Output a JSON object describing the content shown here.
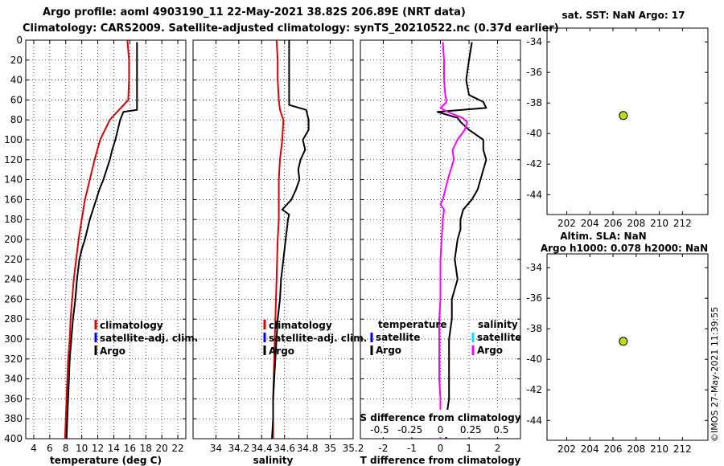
{
  "title": {
    "line1": "Argo profile: aoml 4903190_11 22-May-2021 38.82S 206.89E (NRT data)",
    "line2": "Climatology: CARS2009. Satellite-adjusted climatology: synTS_20210522.nc (0.37d earlier)"
  },
  "footer": "©IMOS 27-May-2021 11:39:55",
  "colors": {
    "climatology": "#e00000",
    "satellite": "#0000ff",
    "argo": "#000000",
    "salinity": "#ff00ff",
    "cyan": "#00e0ff",
    "dot": "#b8e000"
  },
  "chart_data": [
    {
      "type": "line",
      "name": "temperature-profile",
      "xlabel": "temperature (deg C)",
      "ylabel": "",
      "xlim": [
        3,
        23
      ],
      "ylim": [
        400,
        0
      ],
      "xticks": [
        "4",
        "6",
        "8",
        "10",
        "12",
        "14",
        "16",
        "18",
        "20",
        "22"
      ],
      "xtick_values": [
        4,
        6,
        8,
        10,
        12,
        14,
        16,
        18,
        20,
        22
      ],
      "yticks": [
        "0",
        "20",
        "40",
        "60",
        "80",
        "100",
        "120",
        "140",
        "160",
        "180",
        "200",
        "220",
        "240",
        "260",
        "280",
        "300",
        "320",
        "340",
        "360",
        "380",
        "400"
      ],
      "ytick_values": [
        0,
        20,
        40,
        60,
        80,
        100,
        120,
        140,
        160,
        180,
        200,
        220,
        240,
        260,
        280,
        300,
        320,
        340,
        360,
        380,
        400
      ],
      "legend": [
        "climatology",
        "satellite-adj. clim.",
        "Argo"
      ],
      "series": [
        {
          "name": "climatology",
          "depth": [
            0,
            20,
            40,
            60,
            80,
            100,
            120,
            140,
            160,
            180,
            200,
            220,
            240,
            260,
            280,
            300,
            320,
            340,
            360,
            380,
            400
          ],
          "values": [
            15.7,
            15.9,
            15.9,
            15.8,
            13.5,
            12.3,
            11.6,
            11.0,
            10.4,
            10.0,
            9.6,
            9.3,
            9.0,
            8.8,
            8.6,
            8.5,
            8.3,
            8.2,
            8.1,
            8.0,
            7.9
          ]
        },
        {
          "name": "Argo",
          "depth": [
            2,
            20,
            40,
            55,
            60,
            65,
            70,
            72,
            80,
            90,
            100,
            110,
            120,
            130,
            140,
            150,
            160,
            170,
            180,
            190,
            200,
            210,
            220,
            240,
            260,
            280,
            300,
            320,
            340,
            360,
            380,
            400
          ],
          "values": [
            16.9,
            16.9,
            16.9,
            16.9,
            16.9,
            16.9,
            16.9,
            15.2,
            14.8,
            14.5,
            14.2,
            13.8,
            13.5,
            13.1,
            12.7,
            12.2,
            11.8,
            11.4,
            11.0,
            10.7,
            10.4,
            10.0,
            9.7,
            9.4,
            9.2,
            8.9,
            8.7,
            8.5,
            8.4,
            8.3,
            8.2,
            8.1
          ]
        }
      ]
    },
    {
      "type": "line",
      "name": "salinity-profile",
      "xlabel": "salinity",
      "xlim": [
        33.8,
        35.2
      ],
      "ylim": [
        400,
        0
      ],
      "xticks": [
        "34",
        "34.2",
        "34.4",
        "34.6",
        "34.8",
        "35",
        "35.2"
      ],
      "xtick_values": [
        34,
        34.2,
        34.4,
        34.6,
        34.8,
        35,
        35.2
      ],
      "legend": [
        "climatology",
        "satellite-adj. clim.",
        "Argo"
      ],
      "series": [
        {
          "name": "climatology",
          "depth": [
            0,
            20,
            40,
            60,
            70,
            80,
            100,
            120,
            140,
            160,
            180,
            200,
            240,
            280,
            320,
            360,
            400
          ],
          "values": [
            34.53,
            34.54,
            34.54,
            34.55,
            34.56,
            34.59,
            34.58,
            34.56,
            34.55,
            34.55,
            34.55,
            34.54,
            34.53,
            34.52,
            34.51,
            34.5,
            34.5
          ]
        },
        {
          "name": "Argo",
          "depth": [
            0,
            20,
            40,
            60,
            65,
            70,
            80,
            90,
            100,
            110,
            120,
            130,
            140,
            150,
            160,
            170,
            175,
            180,
            190,
            200,
            220,
            240,
            260,
            280,
            300,
            320,
            340,
            360,
            380,
            400
          ],
          "values": [
            34.64,
            34.64,
            34.64,
            34.64,
            34.64,
            34.79,
            34.81,
            34.81,
            34.76,
            34.78,
            34.74,
            34.72,
            34.73,
            34.7,
            34.66,
            34.58,
            34.64,
            34.63,
            34.62,
            34.61,
            34.59,
            34.57,
            34.56,
            34.54,
            34.53,
            34.52,
            34.51,
            34.5,
            34.5,
            34.49
          ]
        }
      ]
    },
    {
      "type": "line",
      "name": "difference-from-climatology",
      "xlabel": "T difference from climatology",
      "xlabel_top": "S difference from climatology",
      "xlim": [
        -2.8,
        2.8
      ],
      "ylim": [
        400,
        0
      ],
      "xticks": [
        "-2",
        "-1",
        "0",
        "1",
        "2"
      ],
      "xtick_values": [
        -2,
        -1,
        0,
        1,
        2
      ],
      "xticks_top": [
        "-0.5",
        "-0.25",
        "0",
        "0.25",
        "0.5"
      ],
      "xtick_top_values": [
        -0.5,
        -0.25,
        0,
        0.25,
        0.5
      ],
      "legend_left": [
        "temperature",
        "satellite",
        "Argo"
      ],
      "legend_right": [
        "salinity",
        "satellite",
        "Argo"
      ],
      "series": [
        {
          "name": "T Argo",
          "depth": [
            2,
            20,
            40,
            55,
            62,
            68,
            72,
            78,
            82,
            90,
            100,
            110,
            120,
            130,
            140,
            150,
            160,
            170,
            180,
            190,
            200,
            220,
            240,
            260,
            280,
            300,
            320,
            340,
            360,
            380,
            400
          ],
          "values": [
            1.1,
            1.0,
            0.9,
            1.0,
            1.5,
            1.6,
            -0.1,
            0.6,
            0.7,
            1.0,
            1.5,
            1.5,
            1.6,
            1.5,
            1.4,
            1.3,
            1.1,
            0.8,
            0.7,
            0.7,
            0.6,
            0.5,
            0.6,
            0.4,
            0.4,
            0.3,
            0.3,
            0.3,
            0.3,
            0.2,
            0.2
          ]
        },
        {
          "name": "S Argo",
          "depth": [
            2,
            20,
            40,
            55,
            62,
            68,
            72,
            78,
            82,
            90,
            100,
            110,
            120,
            140,
            160,
            165,
            170,
            180,
            200,
            220,
            240,
            260,
            280,
            300,
            320,
            340,
            360,
            380,
            400
          ],
          "values": [
            0.02,
            0.03,
            0.03,
            0.04,
            0.05,
            0.0,
            0.06,
            0.18,
            0.22,
            0.2,
            0.14,
            0.1,
            0.11,
            0.06,
            0.02,
            0.0,
            0.03,
            0.02,
            0.01,
            0.0,
            0.0,
            0.0,
            -0.01,
            -0.01,
            -0.01,
            -0.01,
            0.0,
            0.0,
            0.0
          ]
        }
      ]
    },
    {
      "type": "scatter",
      "name": "sst-map",
      "title": "sat. SST: NaN Argo: 17",
      "xlim": [
        200.3,
        214.2
      ],
      "ylim": [
        -45.3,
        -33.1
      ],
      "xticks": [
        "202",
        "204",
        "206",
        "208",
        "210",
        "212"
      ],
      "xtick_values": [
        202,
        204,
        206,
        208,
        210,
        212
      ],
      "yticks": [
        "-34",
        "-36",
        "-38",
        "-40",
        "-42",
        "-44"
      ],
      "ytick_values": [
        -34,
        -36,
        -38,
        -40,
        -42,
        -44
      ],
      "points": [
        {
          "x": 206.89,
          "y": -38.82
        }
      ]
    },
    {
      "type": "scatter",
      "name": "sla-map",
      "title": "Altim. SLA: NaN",
      "subtitle": "Argo h1000: 0.078 h2000: NaN",
      "xlim": [
        200.3,
        214.2
      ],
      "ylim": [
        -45.3,
        -33.1
      ],
      "xticks": [
        "202",
        "204",
        "206",
        "208",
        "210",
        "212"
      ],
      "xtick_values": [
        202,
        204,
        206,
        208,
        210,
        212
      ],
      "yticks": [
        "-34",
        "-36",
        "-38",
        "-40",
        "-42",
        "-44"
      ],
      "ytick_values": [
        -34,
        -36,
        -38,
        -40,
        -42,
        -44
      ],
      "points": [
        {
          "x": 206.89,
          "y": -38.82
        }
      ]
    }
  ]
}
